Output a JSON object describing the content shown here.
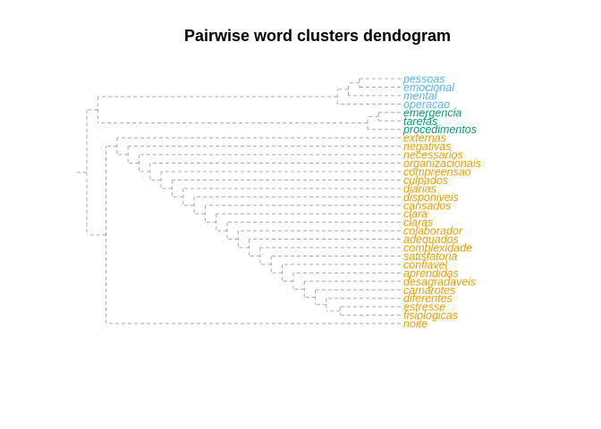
{
  "chart_data": {
    "type": "dendrogram",
    "title": "Pairwise word clusters dendogram",
    "orientation": "horizontal",
    "cluster_colors": {
      "blue": "#56B4E9",
      "green": "#009E73",
      "orange": "#E69F00"
    },
    "leaves": [
      {
        "label": "pessoas",
        "cluster": "blue"
      },
      {
        "label": "emocional",
        "cluster": "blue"
      },
      {
        "label": "mental",
        "cluster": "blue"
      },
      {
        "label": "operacao",
        "cluster": "blue"
      },
      {
        "label": "emergencia",
        "cluster": "green"
      },
      {
        "label": "tarefas",
        "cluster": "green"
      },
      {
        "label": "procedimentos",
        "cluster": "green"
      },
      {
        "label": "externas",
        "cluster": "orange"
      },
      {
        "label": "negativas",
        "cluster": "orange"
      },
      {
        "label": "necessarios",
        "cluster": "orange"
      },
      {
        "label": "organizacionais",
        "cluster": "orange"
      },
      {
        "label": "compreensao",
        "cluster": "orange"
      },
      {
        "label": "culpados",
        "cluster": "orange"
      },
      {
        "label": "diarias",
        "cluster": "orange"
      },
      {
        "label": "disponiveis",
        "cluster": "orange"
      },
      {
        "label": "cansados",
        "cluster": "orange"
      },
      {
        "label": "clara",
        "cluster": "orange"
      },
      {
        "label": "claras",
        "cluster": "orange"
      },
      {
        "label": "colaborador",
        "cluster": "orange"
      },
      {
        "label": "adequados",
        "cluster": "orange"
      },
      {
        "label": "complexidade",
        "cluster": "orange"
      },
      {
        "label": "satisfatoria",
        "cluster": "orange"
      },
      {
        "label": "confiavel",
        "cluster": "orange"
      },
      {
        "label": "aprendidas",
        "cluster": "orange"
      },
      {
        "label": "desagradaveis",
        "cluster": "orange"
      },
      {
        "label": "camarotes",
        "cluster": "orange"
      },
      {
        "label": "diferentes",
        "cluster": "orange"
      },
      {
        "label": "estresse",
        "cluster": "orange"
      },
      {
        "label": "fisiologicas",
        "cluster": "orange"
      },
      {
        "label": "noite",
        "cluster": "orange"
      }
    ],
    "merges": [
      {
        "a": "L:estresse",
        "b": "L:fisiologicas",
        "height": 0.22
      },
      {
        "a": "L:diferentes",
        "b": "M:0",
        "height": 0.27
      },
      {
        "a": "L:camarotes",
        "b": "M:1",
        "height": 0.31
      },
      {
        "a": "L:desagradaveis",
        "b": "M:2",
        "height": 0.35
      },
      {
        "a": "L:aprendidas",
        "b": "M:3",
        "height": 0.39
      },
      {
        "a": "L:confiavel",
        "b": "M:4",
        "height": 0.43
      },
      {
        "a": "L:satisfatoria",
        "b": "M:5",
        "height": 0.47
      },
      {
        "a": "L:complexidade",
        "b": "M:6",
        "height": 0.51
      },
      {
        "a": "L:adequados",
        "b": "M:7",
        "height": 0.55
      },
      {
        "a": "L:colaborador",
        "b": "M:8",
        "height": 0.59
      },
      {
        "a": "L:claras",
        "b": "M:9",
        "height": 0.63
      },
      {
        "a": "L:clara",
        "b": "M:10",
        "height": 0.67
      },
      {
        "a": "L:cansados",
        "b": "M:11",
        "height": 0.71
      },
      {
        "a": "L:disponiveis",
        "b": "M:12",
        "height": 0.75
      },
      {
        "a": "L:diarias",
        "b": "M:13",
        "height": 0.79
      },
      {
        "a": "L:culpados",
        "b": "M:14",
        "height": 0.83
      },
      {
        "a": "L:compreensao",
        "b": "M:15",
        "height": 0.87
      },
      {
        "a": "L:organizacionais",
        "b": "M:16",
        "height": 0.91
      },
      {
        "a": "L:necessarios",
        "b": "M:17",
        "height": 0.95
      },
      {
        "a": "L:negativas",
        "b": "M:18",
        "height": 0.99
      },
      {
        "a": "L:externas",
        "b": "M:19",
        "height": 1.03
      },
      {
        "a": "L:noite",
        "b": "M:20",
        "height": 1.07
      },
      {
        "a": "L:pessoas",
        "b": "L:emocional",
        "height": 0.15
      },
      {
        "a": "L:mental",
        "b": "M:22",
        "height": 0.19
      },
      {
        "a": "L:operacao",
        "b": "M:23",
        "height": 0.23
      },
      {
        "a": "L:emergencia",
        "b": "L:tarefas",
        "height": 0.08
      },
      {
        "a": "L:procedimentos",
        "b": "M:25",
        "height": 0.12
      },
      {
        "a": "M:24",
        "b": "M:26",
        "height": 1.1
      },
      {
        "a": "M:27",
        "b": "M:21",
        "height": 1.14
      }
    ],
    "axes_shown": false,
    "grid": false,
    "legend": "none"
  }
}
